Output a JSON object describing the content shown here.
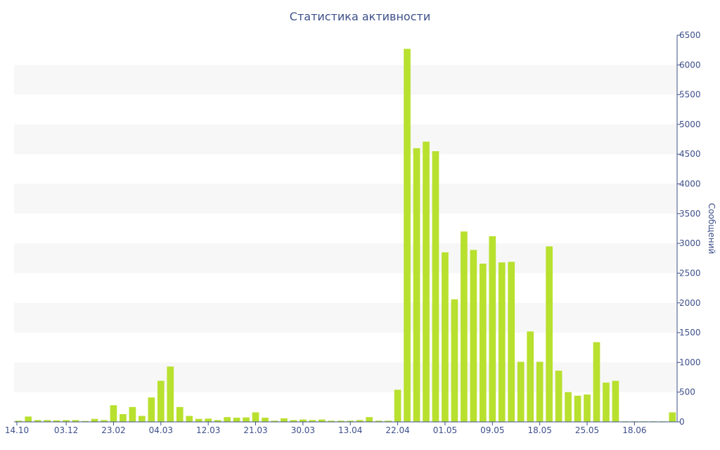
{
  "chart_data": {
    "type": "bar",
    "title": "Статистика активности",
    "xlabel": "",
    "ylabel": "Сообщений",
    "ylim": [
      0,
      6500
    ],
    "yticks": [
      0,
      500,
      1000,
      1500,
      2000,
      2500,
      3000,
      3500,
      4000,
      4500,
      5000,
      5500,
      6000,
      6500
    ],
    "grid": "alternating horizontal bands",
    "legend": "none",
    "y_axis_side": "right",
    "colors": {
      "bar": "#b8e02e",
      "axis": "#3d4f8a",
      "band": "#f7f7f7"
    },
    "x_tick_labels": [
      {
        "label": "14.10",
        "index": 0
      },
      {
        "label": "03.12",
        "index": 5
      },
      {
        "label": "23.02",
        "index": 10
      },
      {
        "label": "04.03",
        "index": 15
      },
      {
        "label": "12.03",
        "index": 20
      },
      {
        "label": "21.03",
        "index": 25
      },
      {
        "label": "30.03",
        "index": 30
      },
      {
        "label": "13.04",
        "index": 35
      },
      {
        "label": "22.04",
        "index": 40
      },
      {
        "label": "01.05",
        "index": 45
      },
      {
        "label": "09.05",
        "index": 50
      },
      {
        "label": "18.05",
        "index": 55
      },
      {
        "label": "25.05",
        "index": 60
      },
      {
        "label": "18.06",
        "index": 65
      }
    ],
    "values": [
      20,
      90,
      30,
      30,
      25,
      30,
      30,
      15,
      50,
      30,
      280,
      130,
      250,
      100,
      410,
      690,
      930,
      250,
      100,
      50,
      55,
      30,
      80,
      70,
      75,
      160,
      70,
      20,
      60,
      30,
      40,
      30,
      40,
      20,
      20,
      20,
      30,
      80,
      20,
      20,
      540,
      6270,
      4600,
      4710,
      4550,
      2850,
      2060,
      3200,
      2890,
      2660,
      3120,
      2680,
      2690,
      1010,
      1520,
      1010,
      2950,
      860,
      500,
      440,
      460,
      1340,
      660,
      690,
      10,
      10,
      10,
      10,
      10,
      160
    ]
  }
}
